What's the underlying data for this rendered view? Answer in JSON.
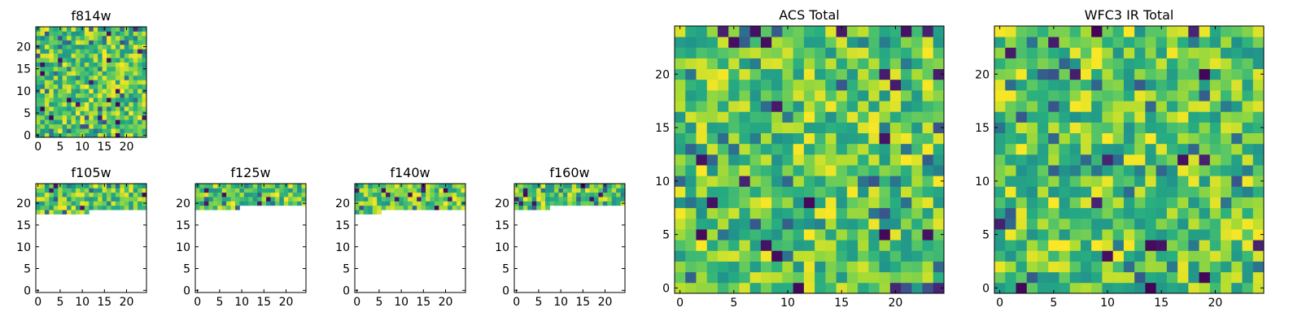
{
  "chart_data": [
    {
      "id": "f814w",
      "type": "heatmap",
      "title": "f814w",
      "xlim": [
        -0.5,
        24.5
      ],
      "ylim": [
        -0.5,
        24.5
      ],
      "xticks": [
        0,
        5,
        10,
        15,
        20
      ],
      "yticks": [
        0,
        5,
        10,
        15,
        20
      ],
      "grid_size": [
        25,
        25
      ],
      "filled_rows_min": 0,
      "colormap": "viridis",
      "seed": 11,
      "value_range": [
        0,
        1
      ]
    },
    {
      "id": "f105w",
      "type": "heatmap",
      "title": "f105w",
      "xlim": [
        -0.5,
        24.5
      ],
      "ylim": [
        -0.5,
        24.5
      ],
      "xticks": [
        0,
        5,
        10,
        15,
        20
      ],
      "yticks": [
        0,
        5,
        10,
        15,
        20
      ],
      "grid_size": [
        25,
        25
      ],
      "filled_rows_min": 19,
      "filled_rows_min_left": 18,
      "left_cols": 12,
      "colormap": "viridis",
      "seed": 23,
      "value_range": [
        0,
        1
      ]
    },
    {
      "id": "f125w",
      "type": "heatmap",
      "title": "f125w",
      "xlim": [
        -0.5,
        24.5
      ],
      "ylim": [
        -0.5,
        24.5
      ],
      "xticks": [
        0,
        5,
        10,
        15,
        20
      ],
      "yticks": [
        0,
        5,
        10,
        15,
        20
      ],
      "grid_size": [
        25,
        25
      ],
      "filled_rows_min": 20,
      "filled_rows_min_left": 19,
      "left_cols": 10,
      "colormap": "viridis",
      "seed": 37,
      "value_range": [
        0,
        1
      ]
    },
    {
      "id": "f140w",
      "type": "heatmap",
      "title": "f140w",
      "xlim": [
        -0.5,
        24.5
      ],
      "ylim": [
        -0.5,
        24.5
      ],
      "xticks": [
        0,
        5,
        10,
        15,
        20
      ],
      "yticks": [
        0,
        5,
        10,
        15,
        20
      ],
      "grid_size": [
        25,
        25
      ],
      "filled_rows_min": 19,
      "filled_rows_min_left": 18,
      "left_cols": 6,
      "colormap": "viridis",
      "seed": 51,
      "value_range": [
        0,
        1
      ]
    },
    {
      "id": "f160w",
      "type": "heatmap",
      "title": "f160w",
      "xlim": [
        -0.5,
        24.5
      ],
      "ylim": [
        -0.5,
        24.5
      ],
      "xticks": [
        0,
        5,
        10,
        15,
        20
      ],
      "yticks": [
        0,
        5,
        10,
        15,
        20
      ],
      "grid_size": [
        25,
        25
      ],
      "filled_rows_min": 20,
      "filled_rows_min_left": 19,
      "left_cols": 8,
      "colormap": "viridis",
      "seed": 67,
      "value_range": [
        0,
        1
      ]
    },
    {
      "id": "acs-total",
      "type": "heatmap",
      "title": "ACS Total",
      "xlim": [
        -0.5,
        24.5
      ],
      "ylim": [
        -0.5,
        24.5
      ],
      "xticks": [
        0,
        5,
        10,
        15,
        20
      ],
      "yticks": [
        0,
        5,
        10,
        15,
        20
      ],
      "grid_size": [
        25,
        25
      ],
      "filled_rows_min": 0,
      "colormap": "viridis",
      "seed": 83,
      "value_range": [
        0,
        1
      ]
    },
    {
      "id": "wfc3-ir-total",
      "type": "heatmap",
      "title": "WFC3 IR Total",
      "xlim": [
        -0.5,
        24.5
      ],
      "ylim": [
        -0.5,
        24.5
      ],
      "xticks": [
        0,
        5,
        10,
        15,
        20
      ],
      "yticks": [
        0,
        5,
        10,
        15,
        20
      ],
      "grid_size": [
        25,
        25
      ],
      "filled_rows_min": 0,
      "colormap": "viridis",
      "seed": 97,
      "value_range": [
        0,
        1
      ]
    }
  ]
}
